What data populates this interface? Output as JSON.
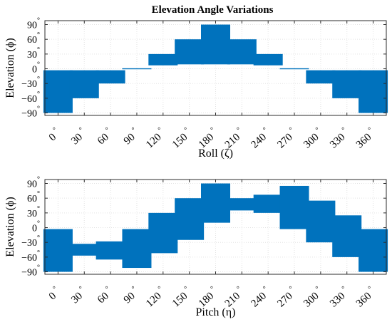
{
  "chart_data": [
    {
      "type": "bar",
      "subtype": "floating-range",
      "title": "Elevation Angle Variations",
      "xlabel": "Roll (ζ)",
      "ylabel": "Elevation (ϕ)",
      "categories": [
        "0",
        "30",
        "60",
        "90",
        "120",
        "150",
        "180",
        "210",
        "240",
        "270",
        "300",
        "330",
        "360"
      ],
      "tick_suffix": "°",
      "ranges": [
        [
          -90,
          -3
        ],
        [
          -60,
          -3
        ],
        [
          -30,
          -3
        ],
        [
          -1,
          1
        ],
        [
          7,
          30
        ],
        [
          9,
          60
        ],
        [
          9,
          90
        ],
        [
          9,
          60
        ],
        [
          7,
          30
        ],
        [
          -1,
          1
        ],
        [
          -30,
          -3
        ],
        [
          -60,
          -3
        ],
        [
          -90,
          -3
        ]
      ],
      "ylim": [
        -95,
        98
      ],
      "yticks": [
        -90,
        -60,
        -30,
        0,
        30,
        60,
        90
      ],
      "grid": true,
      "bar_color": "#0072bd"
    },
    {
      "type": "bar",
      "subtype": "floating-range",
      "title": "",
      "xlabel": "Pitch (η)",
      "ylabel": "Elevation (ϕ)",
      "categories": [
        "0",
        "30",
        "60",
        "90",
        "120",
        "150",
        "180",
        "210",
        "240",
        "270",
        "300",
        "330",
        "360"
      ],
      "tick_suffix": "°",
      "ranges": [
        [
          -90,
          -3
        ],
        [
          -57,
          -33
        ],
        [
          -65,
          -28
        ],
        [
          -82,
          -3
        ],
        [
          -52,
          30
        ],
        [
          -25,
          60
        ],
        [
          10,
          90
        ],
        [
          35,
          60
        ],
        [
          30,
          67
        ],
        [
          -3,
          85
        ],
        [
          -30,
          55
        ],
        [
          -60,
          25
        ],
        [
          -90,
          -3
        ]
      ],
      "ylim": [
        -95,
        98
      ],
      "yticks": [
        -90,
        -60,
        -30,
        0,
        30,
        60,
        90
      ],
      "grid": true,
      "bar_color": "#0072bd"
    }
  ]
}
